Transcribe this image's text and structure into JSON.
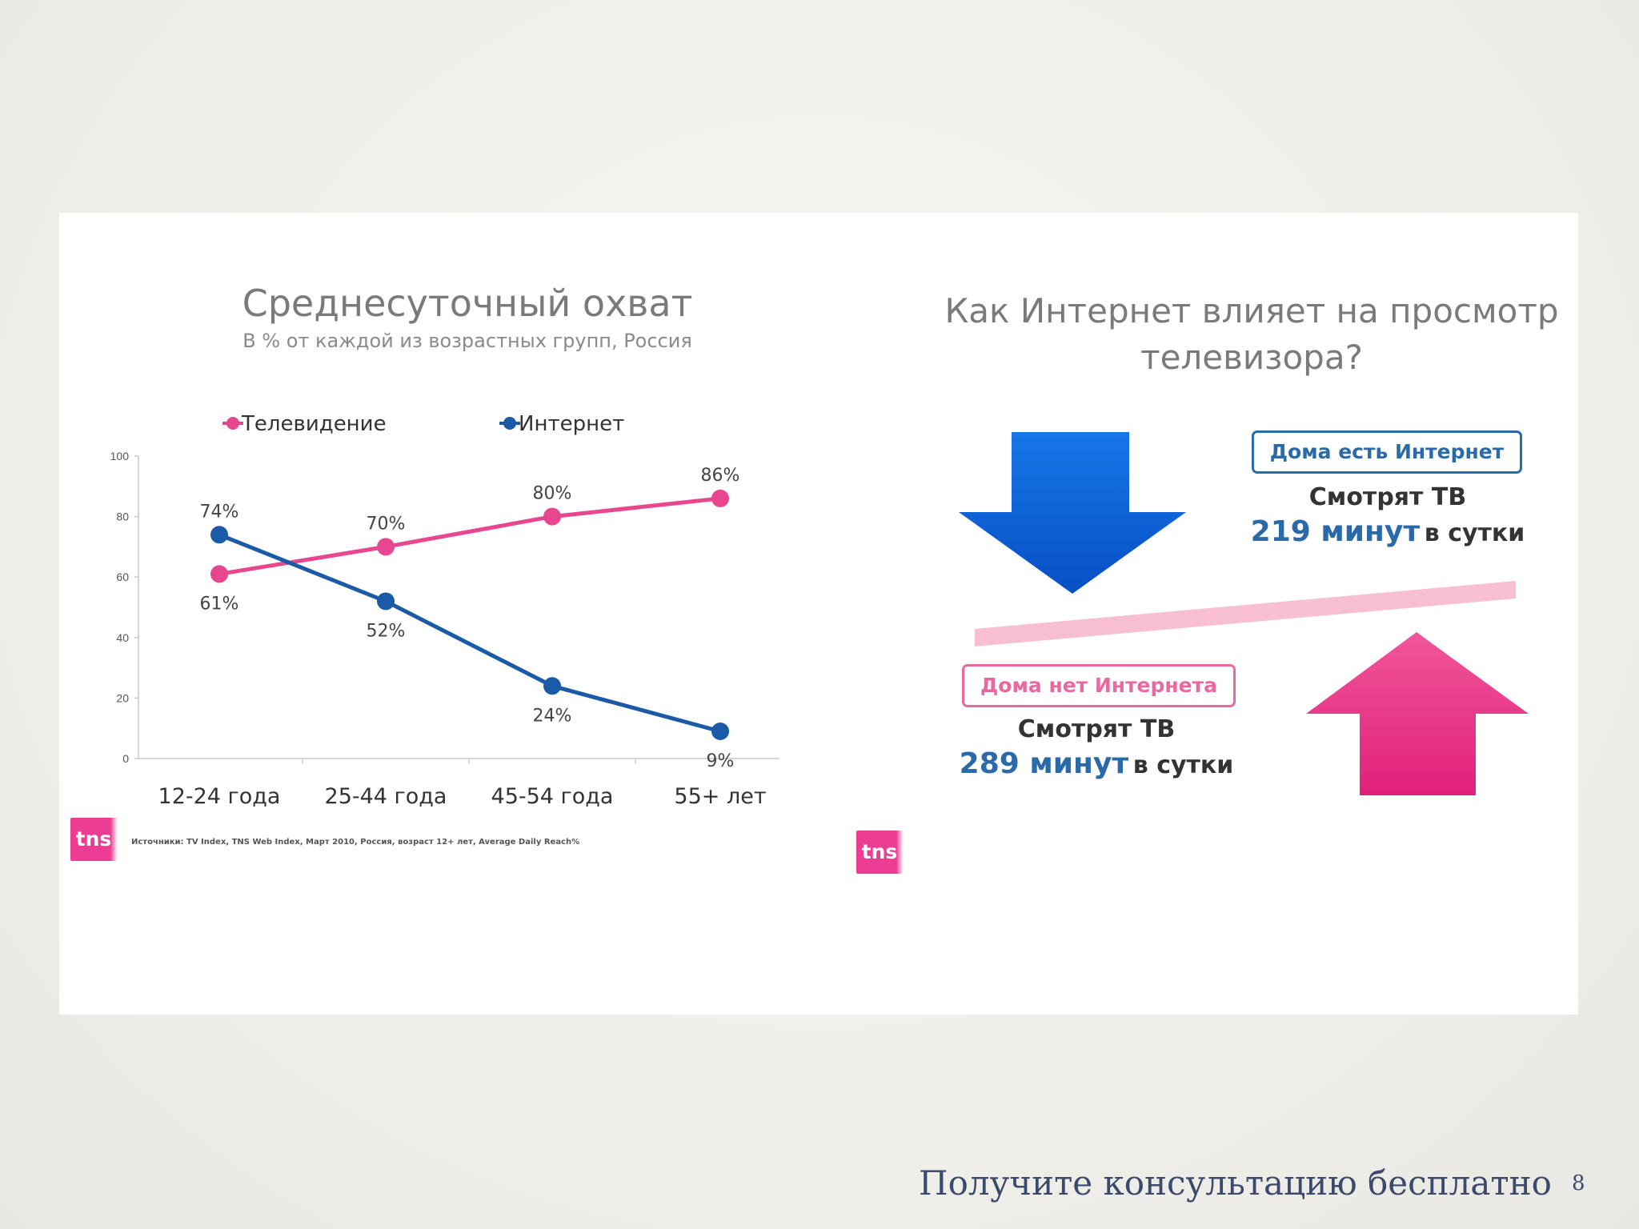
{
  "chart_data": {
    "type": "line",
    "title": "Среднесуточный охват",
    "subtitle": "В % от каждой из возрастных групп, Россия",
    "categories": [
      "12-24 года",
      "25-44 года",
      "45-54 года",
      "55+ лет"
    ],
    "series": [
      {
        "name": "Телевидение",
        "values": [
          61,
          70,
          80,
          86
        ],
        "labels": [
          "61%",
          "70%",
          "80%",
          "86%"
        ],
        "color": "#e8468f"
      },
      {
        "name": "Интернет",
        "values": [
          74,
          52,
          24,
          9
        ],
        "labels": [
          "74%",
          "52%",
          "24%",
          "9%"
        ],
        "color": "#1b5aa6"
      }
    ],
    "ylim": [
      0,
      100
    ],
    "yticks": [
      0,
      20,
      40,
      60,
      80,
      100
    ],
    "grid": false,
    "legend_position": "top"
  },
  "source_note": "Источники: TV Index, TNS Web Index, Март 2010, Россия, возраст 12+ лет, Average Daily Reach%",
  "logo_text": "tns",
  "right_panel": {
    "question": "Как Интернет влияет на просмотр телевизора?",
    "with_internet": {
      "tag": "Дома есть Интернет",
      "label": "Смотрят ТВ",
      "minutes": "219 минут",
      "suffix": "в сутки"
    },
    "without_internet": {
      "tag": "Дома нет Интернета",
      "label": "Смотрят ТВ",
      "minutes": "289 минут",
      "suffix": "в сутки"
    },
    "colors": {
      "down_arrow": "#0a5fd6",
      "up_arrow": "#e8307f",
      "bar": "#f8bfd2"
    }
  },
  "footer": {
    "text": "Получите консультацию бесплатно",
    "page_number": "8"
  }
}
